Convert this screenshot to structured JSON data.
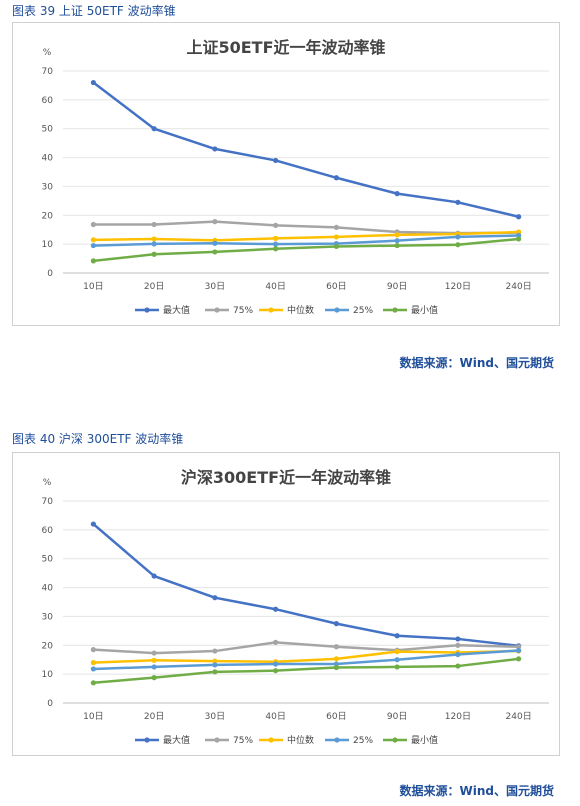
{
  "colors": {
    "max": "#4472c4",
    "p75": "#a5a5a5",
    "median": "#ffc000",
    "p25": "#5b9bd5",
    "min": "#70ad47",
    "caption": "#1f4e9a"
  },
  "charts": [
    {
      "caption": "图表 39  上证 50ETF 波动率锥",
      "source": "数据来源：Wind、国元期货"
    },
    {
      "caption": "图表 40  沪深 300ETF 波动率锥",
      "source": "数据来源：Wind、国元期货"
    }
  ],
  "chart_data": [
    {
      "type": "line",
      "title": "上证50ETF近一年波动率锥",
      "ylabel": "%",
      "ylim": [
        0,
        70
      ],
      "yticks": [
        0,
        10,
        20,
        30,
        40,
        50,
        60,
        70
      ],
      "categories": [
        "10日",
        "20日",
        "30日",
        "40日",
        "60日",
        "90日",
        "120日",
        "240日"
      ],
      "legend_position": "bottom",
      "grid": true,
      "series": [
        {
          "key": "max",
          "name": "最大值",
          "values": [
            66,
            50,
            43,
            39,
            33,
            27.5,
            24.5,
            19.5
          ]
        },
        {
          "key": "p75",
          "name": "75%",
          "values": [
            16.8,
            16.8,
            17.8,
            16.5,
            15.8,
            14.2,
            13.8,
            14.0
          ]
        },
        {
          "key": "median",
          "name": "中位数",
          "values": [
            11.5,
            11.8,
            11.3,
            12.0,
            12.5,
            13.2,
            13.5,
            14.2
          ]
        },
        {
          "key": "p25",
          "name": "25%",
          "values": [
            9.5,
            10.1,
            10.3,
            10.0,
            10.2,
            11.2,
            12.5,
            13.0
          ]
        },
        {
          "key": "min",
          "name": "最小值",
          "values": [
            4.2,
            6.5,
            7.3,
            8.4,
            9.2,
            9.5,
            9.8,
            11.8
          ]
        }
      ]
    },
    {
      "type": "line",
      "title": "沪深300ETF近一年波动率锥",
      "ylabel": "%",
      "ylim": [
        0,
        70
      ],
      "yticks": [
        0,
        10,
        20,
        30,
        40,
        50,
        60,
        70
      ],
      "categories": [
        "10日",
        "20日",
        "30日",
        "40日",
        "60日",
        "90日",
        "120日",
        "240日"
      ],
      "legend_position": "bottom",
      "grid": true,
      "series": [
        {
          "key": "max",
          "name": "最大值",
          "values": [
            62,
            44,
            36.5,
            32.5,
            27.5,
            23.3,
            22.2,
            19.8
          ]
        },
        {
          "key": "p75",
          "name": "75%",
          "values": [
            18.5,
            17.3,
            18.0,
            21.0,
            19.5,
            18.3,
            20.0,
            19.5
          ]
        },
        {
          "key": "median",
          "name": "中位数",
          "values": [
            14.0,
            14.8,
            14.5,
            14.3,
            15.3,
            17.8,
            17.5,
            18.0
          ]
        },
        {
          "key": "p25",
          "name": "25%",
          "values": [
            11.8,
            12.5,
            13.2,
            13.5,
            13.5,
            15.0,
            16.8,
            18.2
          ]
        },
        {
          "key": "min",
          "name": "最小值",
          "values": [
            7.0,
            8.8,
            10.8,
            11.2,
            12.3,
            12.5,
            12.8,
            15.3
          ]
        }
      ]
    }
  ]
}
